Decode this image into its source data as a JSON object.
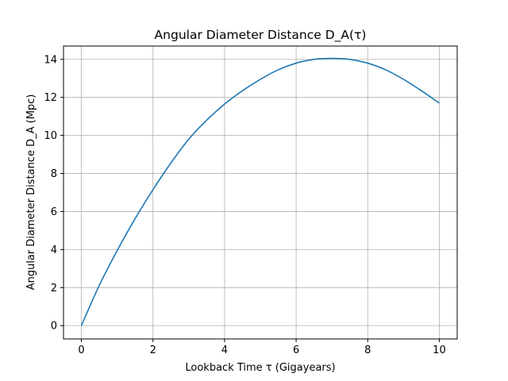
{
  "chart_data": {
    "type": "line",
    "title": "Angular Diameter Distance D_A(τ)",
    "xlabel": "Lookback Time τ (Gigayears)",
    "ylabel": "Angular Diameter Distance D_A (Mpc)",
    "xlim": [
      -0.5,
      10.5
    ],
    "ylim": [
      -0.7,
      14.7
    ],
    "xticks": [
      0,
      2,
      4,
      6,
      8,
      10
    ],
    "yticks": [
      0,
      2,
      4,
      6,
      8,
      10,
      12,
      14
    ],
    "grid": true,
    "series": [
      {
        "color": "#1f77b4",
        "x": [
          0,
          0.5,
          1,
          1.5,
          2,
          2.5,
          3,
          3.5,
          4,
          4.5,
          5,
          5.5,
          6,
          6.5,
          7,
          7.5,
          8,
          8.5,
          9,
          9.5,
          10
        ],
        "y": [
          0,
          2.12,
          3.95,
          5.62,
          7.15,
          8.55,
          9.8,
          10.8,
          11.65,
          12.35,
          12.95,
          13.45,
          13.8,
          14.0,
          14.05,
          14.0,
          13.8,
          13.45,
          12.95,
          12.35,
          11.7
        ]
      }
    ]
  }
}
